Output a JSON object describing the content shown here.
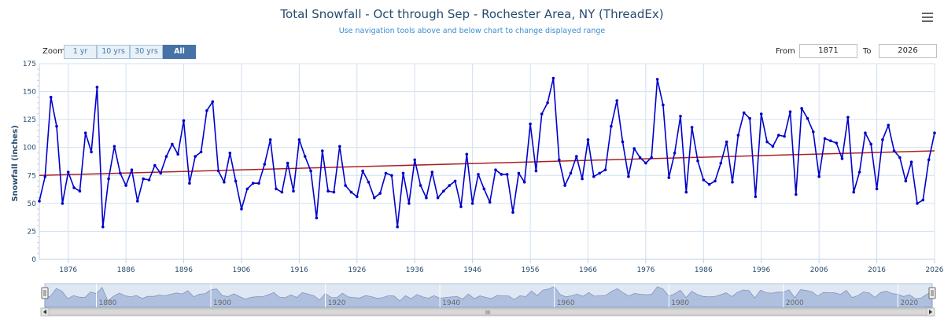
{
  "header": {
    "title": "Total Snowfall - Oct through Sep - Rochester Area, NY (ThreadEx)",
    "subtitle": "Use navigation tools above and below chart to change displayed range"
  },
  "zoom": {
    "label": "Zoom",
    "buttons": [
      "1 yr",
      "10 yrs",
      "30 yrs",
      "All"
    ],
    "active": "All"
  },
  "range": {
    "from_label": "From",
    "from_value": "1871",
    "to_label": "To",
    "to_value": "2026"
  },
  "navigator": {
    "tick_labels": [
      "1880",
      "1900",
      "1920",
      "1940",
      "1960",
      "1980",
      "2000",
      "2020"
    ],
    "scroll_grip": "III"
  },
  "colors": {
    "series": "#0000cc",
    "trend": "#aa2222",
    "grid": "#d0e0f0",
    "axis_text": "#274b6d",
    "navigator_fill": "#aabbdd"
  },
  "chart_data": {
    "type": "line",
    "title": "Total Snowfall - Oct through Sep - Rochester Area, NY (ThreadEx)",
    "ylabel": "Snowfall (inches)",
    "xlim": [
      1871,
      2026
    ],
    "ylim": [
      0,
      175
    ],
    "yticks": [
      0,
      25,
      50,
      75,
      100,
      125,
      150,
      175
    ],
    "xticks": [
      1876,
      1886,
      1896,
      1906,
      1916,
      1926,
      1936,
      1946,
      1956,
      1966,
      1976,
      1986,
      1996,
      2006,
      2016,
      2026
    ],
    "grid": true,
    "series": [
      {
        "type": "line",
        "x_start": 1871,
        "values": [
          52,
          74,
          145,
          119,
          50,
          78,
          64,
          61,
          113,
          96,
          154,
          29,
          72,
          101,
          77,
          66,
          80,
          52,
          72,
          71,
          84,
          77,
          92,
          103,
          94,
          124,
          68,
          92,
          96,
          133,
          141,
          79,
          69,
          95,
          70,
          45,
          63,
          68,
          68,
          85,
          107,
          63,
          60,
          86,
          61,
          107,
          92,
          79,
          37,
          97,
          61,
          60,
          101,
          66,
          60,
          56,
          79,
          69,
          55,
          59,
          77,
          75,
          29,
          77,
          50,
          89,
          66,
          55,
          78,
          55,
          61,
          66,
          70,
          47,
          94,
          50,
          76,
          63,
          51,
          80,
          76,
          76,
          42,
          77,
          69,
          121,
          79,
          130,
          140,
          162,
          89,
          66,
          77,
          92,
          72,
          107,
          74,
          77,
          80,
          119,
          142,
          105,
          74,
          99,
          91,
          86,
          91,
          161,
          138,
          73,
          95,
          128,
          60,
          118,
          88,
          71,
          67,
          70,
          86,
          105,
          69,
          111,
          131,
          126,
          56,
          130,
          105,
          101,
          111,
          110,
          132,
          58,
          135,
          126,
          114,
          74,
          108,
          106,
          104,
          90,
          127,
          60,
          78,
          113,
          103,
          63,
          107,
          120,
          97,
          91,
          70,
          87,
          50,
          53,
          89,
          113
        ]
      },
      {
        "type": "line",
        "x": [
          1871,
          2026
        ],
        "values": [
          75,
          97
        ]
      }
    ]
  }
}
